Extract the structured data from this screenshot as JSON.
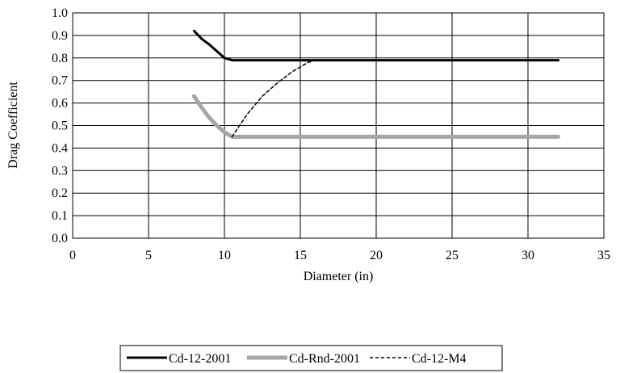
{
  "chart_data": {
    "type": "line",
    "title": "",
    "xlabel": "Diameter (in)",
    "ylabel": "Drag Coefficient",
    "xlim": [
      0,
      35
    ],
    "ylim": [
      0,
      1.0
    ],
    "x_ticks": [
      0,
      5,
      10,
      15,
      20,
      25,
      30,
      35
    ],
    "y_ticks": [
      0.0,
      0.1,
      0.2,
      0.3,
      0.4,
      0.5,
      0.6,
      0.7,
      0.8,
      0.9,
      1.0
    ],
    "x_tick_labels": [
      "0",
      "5",
      "10",
      "15",
      "20",
      "25",
      "30",
      "35"
    ],
    "y_tick_labels": [
      "0.0",
      "0.1",
      "0.2",
      "0.3",
      "0.4",
      "0.5",
      "0.6",
      "0.7",
      "0.8",
      "0.9",
      "1.0"
    ],
    "grid": true,
    "legend_position": "bottom",
    "series": [
      {
        "name": "Cd-12-2001",
        "color": "#000000",
        "style": "solid-thick",
        "x": [
          8.0,
          8.5,
          9.0,
          9.5,
          10.0,
          10.5,
          32.0
        ],
        "y": [
          0.92,
          0.885,
          0.86,
          0.83,
          0.8,
          0.79,
          0.79
        ]
      },
      {
        "name": "Cd-Rnd-2001",
        "color": "#a6a6a6",
        "style": "solid-thick",
        "x": [
          8.0,
          8.5,
          9.0,
          9.5,
          10.0,
          10.5,
          32.0
        ],
        "y": [
          0.63,
          0.58,
          0.535,
          0.5,
          0.47,
          0.45,
          0.45
        ]
      },
      {
        "name": "Cd-12-M4",
        "color": "#000000",
        "style": "dashed",
        "x": [
          10.5,
          11.5,
          12.5,
          13.5,
          14.5,
          15.5,
          16.0
        ],
        "y": [
          0.45,
          0.55,
          0.63,
          0.69,
          0.74,
          0.78,
          0.79
        ]
      }
    ]
  }
}
